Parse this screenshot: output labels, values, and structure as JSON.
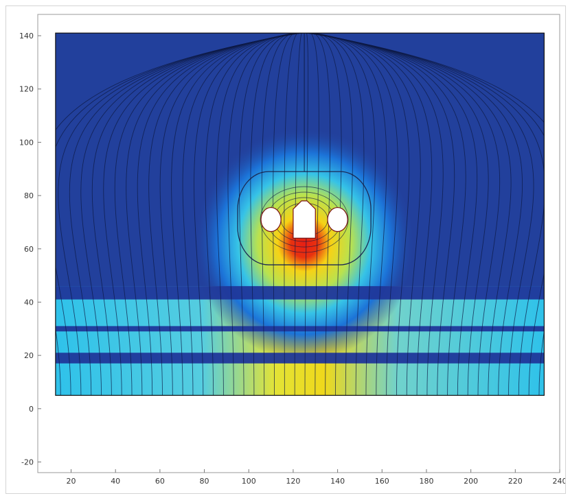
{
  "chart_data": {
    "type": "heatmap",
    "title": "",
    "xlabel": "",
    "ylabel": "",
    "xlim": [
      5,
      240
    ],
    "ylim": [
      -24,
      148
    ],
    "x_ticks": [
      "20",
      "40",
      "60",
      "80",
      "100",
      "120",
      "140",
      "160",
      "180",
      "200",
      "220",
      "240"
    ],
    "y_ticks": [
      "-20",
      "0",
      "20",
      "40",
      "60",
      "80",
      "100",
      "120",
      "140"
    ],
    "domain": {
      "x": [
        13,
        233
      ],
      "y": [
        5,
        141
      ]
    },
    "horizontal_bands": [
      [
        17,
        21
      ],
      [
        29,
        31
      ],
      [
        41,
        46
      ]
    ],
    "conductors": [
      {
        "shape": "circle",
        "cx": 110,
        "cy": 71,
        "r": 4.5
      },
      {
        "shape": "circle",
        "cx": 140,
        "cy": 71,
        "r": 4.5
      },
      {
        "shape": "house",
        "x0": 120,
        "x1": 130,
        "y0": 64,
        "y1": 78
      }
    ],
    "grid": false,
    "colorscale": [
      "#1f3f9c",
      "#1a78e0",
      "#35c6e6",
      "#d8e64a",
      "#f0d214",
      "#e61f14"
    ]
  }
}
